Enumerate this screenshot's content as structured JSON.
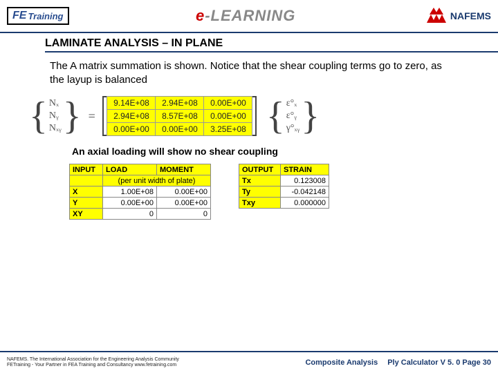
{
  "header": {
    "logo_fe_prefix": "FE",
    "logo_fe_text": "Training",
    "logo_el_e": "e",
    "logo_el_dash": "-",
    "logo_el_text": "LEARNING",
    "logo_naf": "NAFEMS"
  },
  "title": "LAMINATE ANALYSIS – IN PLANE",
  "para1": "The A matrix summation is shown. Notice that the shear coupling terms go to zero, as the layup is balanced",
  "caption1": "An axial loading will show no shear coupling",
  "equation": {
    "left_vec": [
      "Nₓ",
      "Nᵧ",
      "Nₓᵧ"
    ],
    "eq_sign": "=",
    "matrix": [
      [
        "9.14E+08",
        "2.94E+08",
        "0.00E+00"
      ],
      [
        "2.94E+08",
        "8.57E+08",
        "0.00E+00"
      ],
      [
        "0.00E+00",
        "0.00E+00",
        "3.25E+08"
      ]
    ],
    "right_vec": [
      "ε°ₓ",
      "ε°ᵧ",
      "γ°ₓᵧ"
    ]
  },
  "input_table": {
    "head": [
      "INPUT",
      "LOAD",
      "MOMENT"
    ],
    "subhead": "(per unit width of plate)",
    "rows": [
      [
        "X",
        "1.00E+08",
        "0.00E+00"
      ],
      [
        "Y",
        "0.00E+00",
        "0.00E+00"
      ],
      [
        "XY",
        "0",
        "0"
      ]
    ],
    "col_widths": [
      "48px",
      "78px",
      "78px"
    ]
  },
  "output_table": {
    "head": [
      "OUTPUT",
      "STRAIN"
    ],
    "rows": [
      [
        "Tx",
        "0.123008"
      ],
      [
        "Ty",
        "-0.042148"
      ],
      [
        "Txy",
        "0.000000"
      ]
    ],
    "col_widths": [
      "60px",
      "70px"
    ]
  },
  "footer": {
    "line1": "NAFEMS. The International Association for the Engineering Analysis Community",
    "line2": "FETraining - Your Partner in FEA Training and Consultancy www.fetraining.com",
    "right1": "Composite Analysis",
    "right2": "Ply Calculator  V 5. 0  Page 30"
  },
  "colors": {
    "accent": "#1a3a6e",
    "highlight": "#ffff00"
  }
}
